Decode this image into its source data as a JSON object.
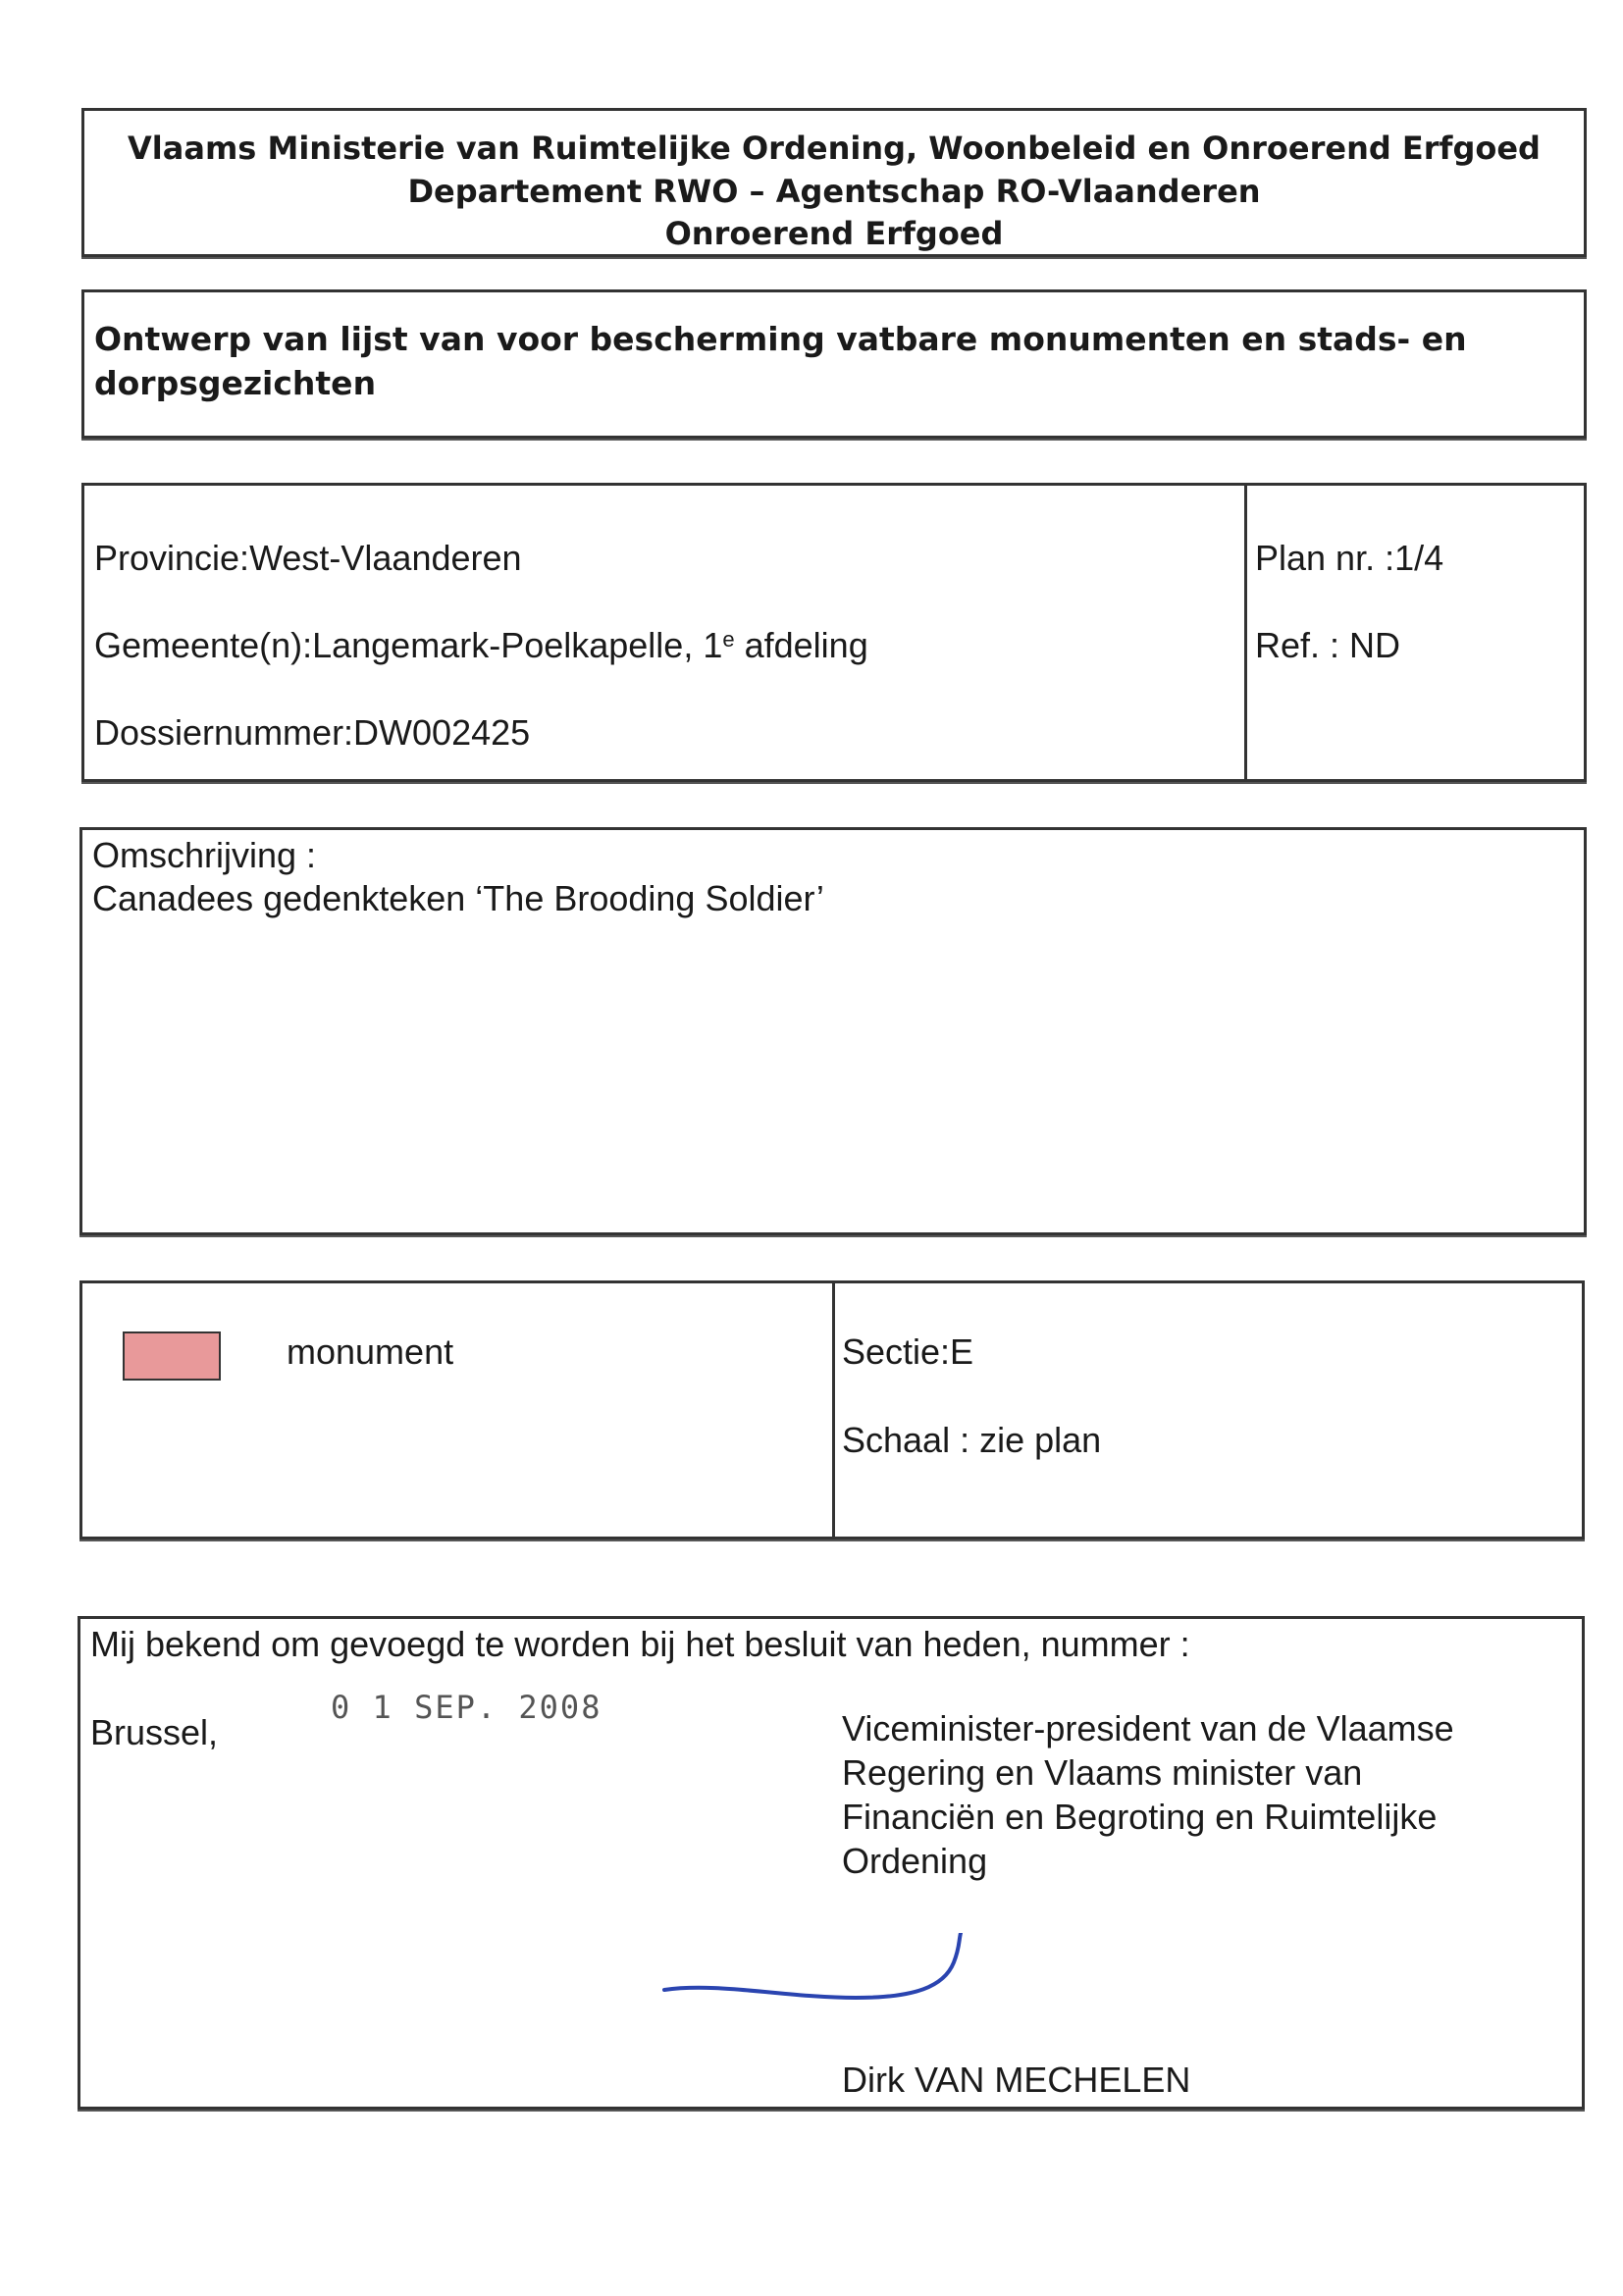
{
  "header": {
    "line1": "Vlaams Ministerie van Ruimtelijke Ordening, Woonbeleid en Onroerend Erfgoed",
    "line2": "Departement RWO – Agentschap RO-Vlaanderen",
    "line3": "Onroerend Erfgoed"
  },
  "title": {
    "line1": "Ontwerp van lijst van voor bescherming vatbare monumenten en stads- en",
    "line2": "dorpsgezichten"
  },
  "info": {
    "provincie": "Provincie:West-Vlaanderen",
    "gemeente_prefix": "Gemeente(n):Langemark-Poelkapelle, 1",
    "gemeente_sup": "e",
    "gemeente_suffix": " afdeling",
    "dossier": "Dossiernummer:DW002425",
    "plan": "Plan nr. :1/4",
    "ref": "Ref. : ND"
  },
  "description": {
    "label": "Omschrijving :",
    "text": "Canadees gedenkteken ‘The Brooding Soldier’"
  },
  "legend": {
    "swatch_color": "#e8999a",
    "label": "monument",
    "sectie": "Sectie:E",
    "schaal": "Schaal : zie plan"
  },
  "signature_block": {
    "intro": "Mij bekend om gevoegd te worden bij het besluit van heden, nummer :",
    "place": "Brussel,",
    "date_stamp": "0 1 SEP. 2008",
    "title_lines": [
      "Viceminister-president van de Vlaamse",
      "Regering en Vlaams minister van",
      "Financiën en Begroting en Ruimtelijke",
      "Ordening"
    ],
    "name": "Dirk VAN MECHELEN",
    "signature_color": "#2a44b0"
  }
}
